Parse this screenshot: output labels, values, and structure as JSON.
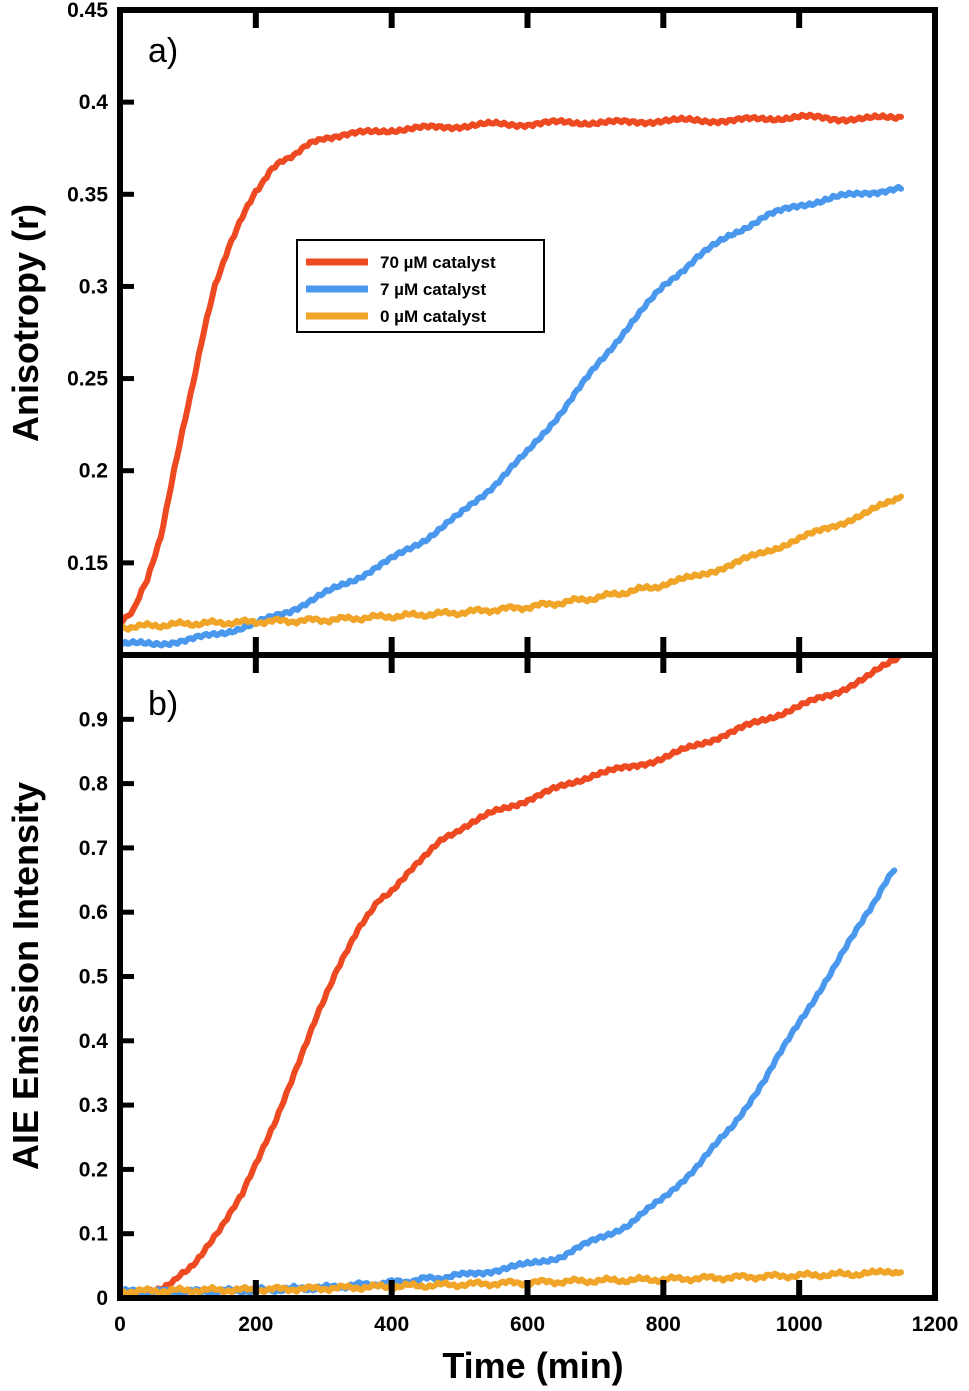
{
  "chart_data": [
    {
      "type": "line",
      "panel_label": "a)",
      "ylabel": "Anisotropy (r)",
      "xlim": [
        0,
        1200
      ],
      "ylim": [
        0.1,
        0.45
      ],
      "y_ticks": [
        0.15,
        0.2,
        0.25,
        0.3,
        0.35,
        0.4,
        0.45
      ],
      "y_tick_labels": [
        "0.15",
        "0.2",
        "0.25",
        "0.3",
        "0.35",
        "0.4",
        "0.45"
      ],
      "x_ticks": [
        200,
        400,
        600,
        800,
        1000
      ],
      "legend": {
        "position": "upper-left-center",
        "frame": true
      },
      "grid": false,
      "series": [
        {
          "name": "70 µM catalyst",
          "color": "#ee4a22",
          "x": [
            0,
            20,
            40,
            60,
            80,
            100,
            120,
            140,
            160,
            180,
            200,
            220,
            240,
            260,
            280,
            300,
            350,
            400,
            450,
            500,
            550,
            600,
            650,
            700,
            750,
            800,
            850,
            900,
            950,
            1000,
            1050,
            1100,
            1150
          ],
          "y": [
            0.118,
            0.125,
            0.14,
            0.165,
            0.2,
            0.235,
            0.27,
            0.3,
            0.322,
            0.337,
            0.352,
            0.362,
            0.368,
            0.373,
            0.377,
            0.381,
            0.383,
            0.385,
            0.386,
            0.387,
            0.388,
            0.388,
            0.389,
            0.389,
            0.389,
            0.39,
            0.39,
            0.39,
            0.391,
            0.392,
            0.391,
            0.391,
            0.392
          ]
        },
        {
          "name": "7 µM catalyst",
          "color": "#4a98ee",
          "x": [
            0,
            50,
            100,
            150,
            200,
            250,
            300,
            350,
            400,
            450,
            500,
            550,
            600,
            650,
            700,
            750,
            800,
            850,
            900,
            950,
            1000,
            1050,
            1100,
            1150
          ],
          "y": [
            0.106,
            0.106,
            0.108,
            0.112,
            0.117,
            0.124,
            0.133,
            0.142,
            0.152,
            0.163,
            0.176,
            0.192,
            0.21,
            0.232,
            0.256,
            0.279,
            0.3,
            0.316,
            0.328,
            0.338,
            0.344,
            0.348,
            0.351,
            0.353
          ]
        },
        {
          "name": "0 µM catalyst",
          "color": "#f0a428",
          "x": [
            0,
            100,
            200,
            300,
            400,
            500,
            600,
            700,
            800,
            850,
            900,
            950,
            1000,
            1050,
            1100,
            1150
          ],
          "y": [
            0.115,
            0.117,
            0.118,
            0.119,
            0.121,
            0.123,
            0.126,
            0.131,
            0.138,
            0.143,
            0.149,
            0.156,
            0.163,
            0.17,
            0.177,
            0.186
          ]
        }
      ]
    },
    {
      "type": "line",
      "panel_label": "b)",
      "xlabel": "Time (min)",
      "ylabel": "AIE Emission Intensity",
      "xlim": [
        0,
        1200
      ],
      "ylim": [
        0,
        1
      ],
      "y_ticks": [
        0,
        0.1,
        0.2,
        0.3,
        0.4,
        0.5,
        0.6,
        0.7,
        0.8,
        0.9
      ],
      "y_tick_labels": [
        "0",
        "0.1",
        "0.2",
        "0.3",
        "0.4",
        "0.5",
        "0.6",
        "0.7",
        "0.8",
        "0.9"
      ],
      "x_ticks": [
        0,
        200,
        400,
        600,
        800,
        1000,
        1200
      ],
      "x_tick_labels": [
        "0",
        "200",
        "400",
        "600",
        "800",
        "1000",
        "1200"
      ],
      "grid": false,
      "series": [
        {
          "name": "70 µM catalyst",
          "color": "#ee4a22",
          "x": [
            0,
            40,
            80,
            100,
            120,
            150,
            180,
            200,
            230,
            260,
            290,
            320,
            350,
            380,
            400,
            430,
            460,
            500,
            550,
            600,
            650,
            700,
            750,
            800,
            850,
            900,
            950,
            1000,
            1050,
            1100,
            1150
          ],
          "y": [
            0.005,
            0.008,
            0.025,
            0.045,
            0.068,
            0.11,
            0.16,
            0.21,
            0.28,
            0.36,
            0.44,
            0.51,
            0.57,
            0.615,
            0.635,
            0.67,
            0.7,
            0.73,
            0.755,
            0.775,
            0.795,
            0.815,
            0.825,
            0.84,
            0.86,
            0.88,
            0.9,
            0.92,
            0.94,
            0.965,
            1.0
          ]
        },
        {
          "name": "7 µM catalyst",
          "color": "#4a98ee",
          "x": [
            0,
            100,
            200,
            300,
            400,
            500,
            550,
            600,
            650,
            700,
            750,
            800,
            850,
            900,
            950,
            1000,
            1050,
            1100,
            1140
          ],
          "y": [
            0.01,
            0.01,
            0.012,
            0.016,
            0.024,
            0.035,
            0.043,
            0.052,
            0.065,
            0.09,
            0.115,
            0.155,
            0.205,
            0.265,
            0.34,
            0.43,
            0.51,
            0.6,
            0.665
          ]
        },
        {
          "name": "0 µM catalyst",
          "color": "#f0a428",
          "x": [
            0,
            100,
            200,
            300,
            400,
            500,
            600,
            700,
            800,
            900,
            1000,
            1100,
            1150
          ],
          "y": [
            0.01,
            0.012,
            0.013,
            0.015,
            0.018,
            0.021,
            0.024,
            0.027,
            0.029,
            0.032,
            0.035,
            0.038,
            0.04
          ]
        }
      ]
    }
  ]
}
